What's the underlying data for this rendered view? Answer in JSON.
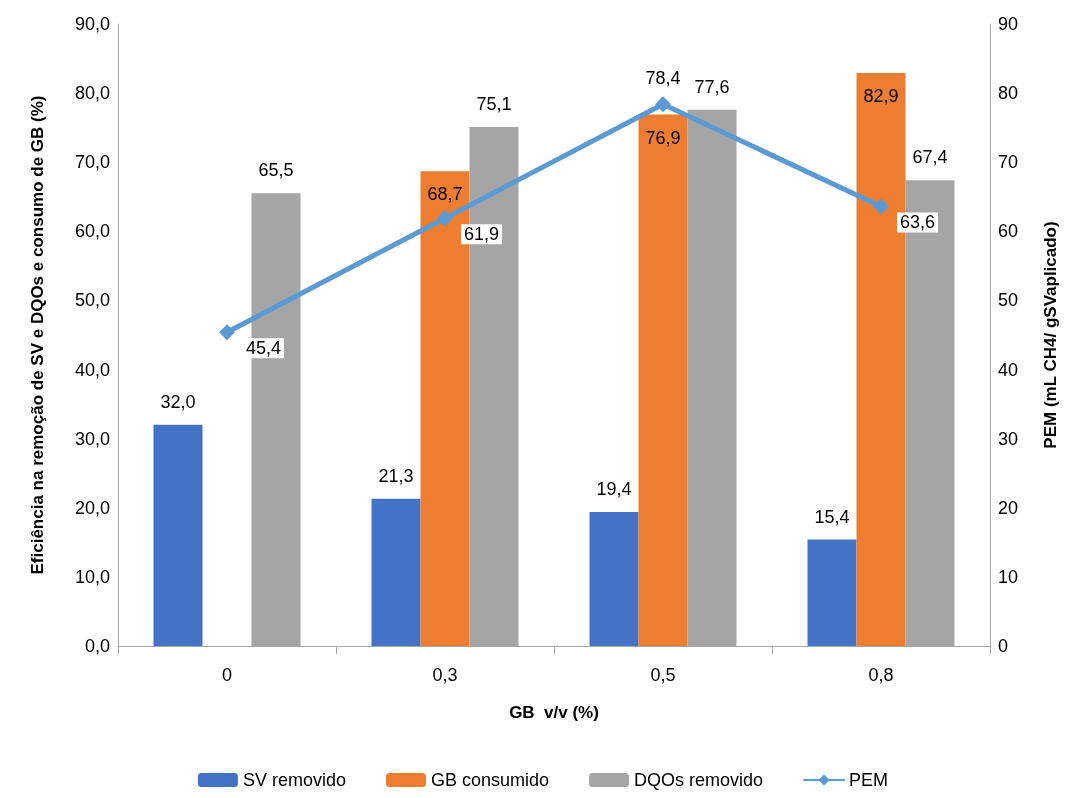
{
  "chart_data": {
    "type": "bar",
    "xlabel": "GB  v/v (%)",
    "ylabel": "Eficiência na remoção de SV e DQOs e consumo de GB (%)",
    "y2label": "PEM (mL CH4/ gSVaplicado)",
    "categories": [
      "0",
      "0,3",
      "0,5",
      "0,8"
    ],
    "series": [
      {
        "name": "SV removido",
        "color": "#4472c4",
        "values": [
          32.0,
          21.3,
          19.4,
          15.4
        ],
        "value_labels": [
          "32,0",
          "21,3",
          "19,4",
          "15,4"
        ]
      },
      {
        "name": "GB consumido",
        "color": "#ed7d31",
        "values": [
          null,
          68.7,
          76.9,
          82.9
        ],
        "value_labels": [
          null,
          "68,7",
          "76,9",
          "82,9"
        ]
      },
      {
        "name": "DQOs removido",
        "color": "#a5a5a5",
        "values": [
          65.5,
          75.1,
          77.6,
          67.4
        ],
        "value_labels": [
          "65,5",
          "75,1",
          "77,6",
          "67,4"
        ]
      },
      {
        "name": "PEM",
        "type": "line",
        "axis": "y2",
        "color": "#5b9bd5",
        "marker": "diamond",
        "values": [
          45.4,
          61.9,
          78.4,
          63.6
        ],
        "value_labels": [
          "45,4",
          "61,9",
          "78,4",
          "63,6"
        ]
      }
    ],
    "ylim": [
      0,
      90
    ],
    "yticks": [
      {
        "value": 0,
        "label": "0,0"
      },
      {
        "value": 10,
        "label": "10,0"
      },
      {
        "value": 20,
        "label": "20,0"
      },
      {
        "value": 30,
        "label": "30,0"
      },
      {
        "value": 40,
        "label": "40,0"
      },
      {
        "value": 50,
        "label": "50,0"
      },
      {
        "value": 60,
        "label": "60,0"
      },
      {
        "value": 70,
        "label": "70,0"
      },
      {
        "value": 80,
        "label": "80,0"
      },
      {
        "value": 90,
        "label": "90,0"
      }
    ],
    "y2lim": [
      0,
      90
    ],
    "y2ticks": [
      0,
      10,
      20,
      30,
      40,
      50,
      60,
      70,
      80,
      90
    ],
    "grid": false,
    "legend": "bottom"
  }
}
